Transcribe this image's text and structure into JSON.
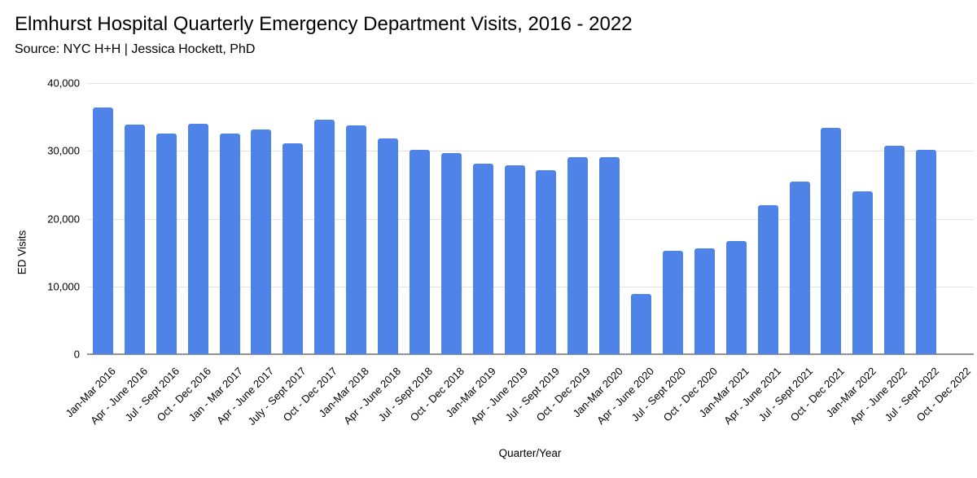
{
  "header": {
    "title": "Elmhurst Hospital Quarterly Emergency Department Visits, 2016 - 2022",
    "source": "Source: NYC H+H | Jessica Hockett, PhD"
  },
  "colors": {
    "bar": "#5083e8",
    "gridline": "#e3e3e3",
    "axis_line": "#949494",
    "text": "#000000",
    "background": "#ffffff"
  },
  "chart_data": {
    "type": "bar",
    "title": "Elmhurst Hospital Quarterly Emergency Department Visits, 2016 - 2022",
    "subtitle": "Source: NYC H+H | Jessica Hockett, PhD",
    "xlabel": "Quarter/Year",
    "ylabel": "ED Visits",
    "ylim": [
      0,
      40000
    ],
    "yticks": [
      0,
      10000,
      20000,
      30000,
      40000
    ],
    "ytick_labels": [
      "0",
      "10,000",
      "20,000",
      "30,000",
      "40,000"
    ],
    "grid": true,
    "legend": "none",
    "bar_color": "#5083e8",
    "categories": [
      "Jan-Mar 2016",
      "Apr - June 2016",
      "Jul - Sept 2016",
      "Oct - Dec 2016",
      "Jan - Mar 2017",
      "Apr - June 2017",
      "July - Sept 2017",
      "Oct - Dec 2017",
      "Jan-Mar 2018",
      "Apr - June 2018",
      "Jul - Sept 2018",
      "Oct - Dec 2018",
      "Jan-Mar 2019",
      "Apr - June 2019",
      "Jul - Sept 2019",
      "Oct - Dec 2019",
      "Jan-Mar 2020",
      "Apr - June 2020",
      "Jul - Sept 2020",
      "Oct - Dec 2020",
      "Jan-Mar 2021",
      "Apr - June 2021",
      "Jul - Sept 2021",
      "Oct - Dec 2021",
      "Jan-Mar 2022",
      "Apr - June 2022",
      "Jul - Sept 2022",
      "Oct - Dec 2022"
    ],
    "values": [
      36400,
      33900,
      32600,
      34000,
      32500,
      33200,
      31100,
      34600,
      33700,
      31800,
      30100,
      29700,
      28100,
      27900,
      27100,
      29100,
      29100,
      8900,
      15300,
      15600,
      16700,
      22000,
      25500,
      33400,
      24000,
      30700,
      30100,
      null
    ]
  }
}
